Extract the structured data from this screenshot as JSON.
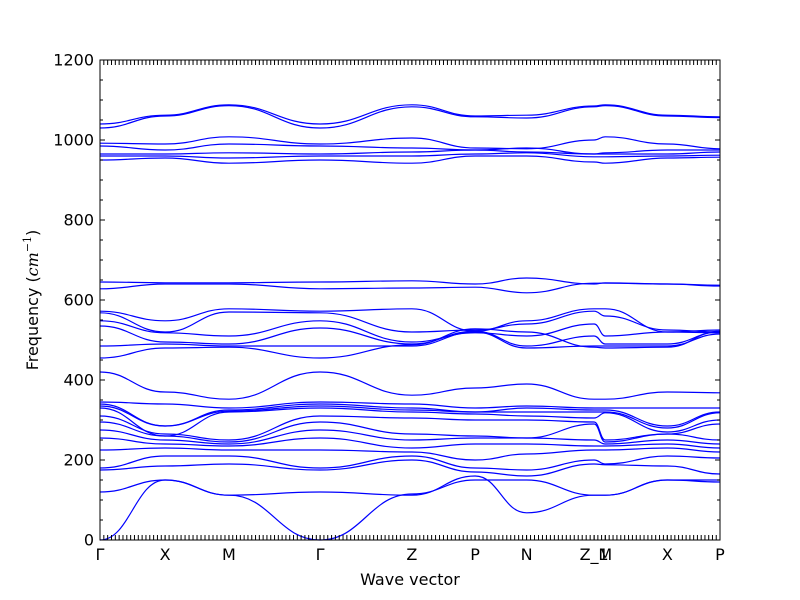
{
  "chart_data": {
    "type": "line",
    "title": "",
    "xlabel": "Wave vector",
    "ylabel": "Frequency (cm⁻¹)",
    "ylabel_main": "Frequency (",
    "ylabel_unit": "cm",
    "ylabel_exp": "−1",
    "ylabel_close": ")",
    "ylim": [
      0,
      1200
    ],
    "yticks": [
      0,
      200,
      400,
      600,
      800,
      1000,
      1200
    ],
    "xlim": [
      0,
      10
    ],
    "high_symmetry_points": [
      {
        "label": "Γ",
        "x": 0
      },
      {
        "label": "X",
        "x": 1.05
      },
      {
        "label": "M",
        "x": 2.08
      },
      {
        "label": "Γ",
        "x": 3.55
      },
      {
        "label": "Z",
        "x": 5.03
      },
      {
        "label": "P",
        "x": 6.05
      },
      {
        "label": "N",
        "x": 6.88
      },
      {
        "label": "Z_1",
        "x": 7.97
      },
      {
        "label": "M",
        "x": 8.15
      },
      {
        "label": "X",
        "x": 9.15
      },
      {
        "label": "P",
        "x": 10
      }
    ],
    "line_color": "#0000ff",
    "grid": false,
    "series": [
      {
        "values": [
          1040,
          1062,
          1088,
          1040,
          1088,
          1060,
          1062,
          1085,
          1088,
          1062,
          1058
        ]
      },
      {
        "values": [
          1030,
          1060,
          1086,
          1030,
          1083,
          1058,
          1055,
          1083,
          1086,
          1060,
          1056
        ]
      },
      {
        "values": [
          992,
          990,
          1008,
          990,
          1005,
          980,
          978,
          1000,
          1008,
          990,
          978
        ]
      },
      {
        "values": [
          985,
          975,
          990,
          985,
          980,
          975,
          980,
          965,
          968,
          975,
          975
        ]
      },
      {
        "values": [
          965,
          965,
          968,
          965,
          970,
          975,
          970,
          965,
          965,
          965,
          970
        ]
      },
      {
        "values": [
          960,
          960,
          955,
          960,
          960,
          965,
          968,
          958,
          958,
          960,
          962
        ]
      },
      {
        "values": [
          950,
          955,
          942,
          950,
          942,
          960,
          960,
          945,
          942,
          955,
          957
        ]
      },
      {
        "values": [
          645,
          643,
          643,
          645,
          648,
          640,
          655,
          640,
          643,
          640,
          637
        ]
      },
      {
        "values": [
          628,
          640,
          640,
          628,
          630,
          632,
          618,
          642,
          642,
          640,
          635
        ]
      },
      {
        "values": [
          572,
          548,
          578,
          572,
          578,
          522,
          548,
          578,
          578,
          520,
          525
        ]
      },
      {
        "values": [
          568,
          520,
          570,
          568,
          520,
          525,
          540,
          572,
          560,
          525,
          520
        ]
      },
      {
        "values": [
          548,
          518,
          510,
          548,
          495,
          518,
          510,
          540,
          510,
          520,
          518
        ]
      },
      {
        "values": [
          535,
          495,
          490,
          530,
          490,
          522,
          485,
          510,
          490,
          490,
          520
        ]
      },
      {
        "values": [
          485,
          490,
          485,
          485,
          485,
          520,
          480,
          485,
          485,
          485,
          515
        ]
      },
      {
        "values": [
          455,
          480,
          482,
          455,
          488,
          528,
          520,
          482,
          480,
          482,
          522
        ]
      },
      {
        "values": [
          420,
          370,
          352,
          420,
          362,
          380,
          390,
          352,
          352,
          370,
          368
        ]
      },
      {
        "values": [
          345,
          340,
          330,
          345,
          340,
          330,
          335,
          330,
          330,
          330,
          330
        ]
      },
      {
        "values": [
          340,
          285,
          325,
          340,
          330,
          320,
          330,
          325,
          325,
          285,
          320
        ]
      },
      {
        "values": [
          335,
          285,
          322,
          335,
          325,
          320,
          320,
          320,
          320,
          280,
          318
        ]
      },
      {
        "values": [
          330,
          260,
          320,
          330,
          320,
          315,
          310,
          305,
          318,
          270,
          300
        ]
      },
      {
        "values": [
          310,
          265,
          250,
          310,
          305,
          300,
          300,
          295,
          250,
          265,
          290
        ]
      },
      {
        "values": [
          295,
          260,
          245,
          295,
          265,
          260,
          255,
          290,
          245,
          265,
          250
        ]
      },
      {
        "values": [
          275,
          250,
          240,
          275,
          250,
          255,
          255,
          250,
          240,
          250,
          240
        ]
      },
      {
        "values": [
          255,
          240,
          235,
          255,
          230,
          240,
          240,
          235,
          235,
          240,
          230
        ]
      },
      {
        "values": [
          225,
          230,
          225,
          225,
          220,
          200,
          215,
          225,
          225,
          230,
          220
        ]
      },
      {
        "values": [
          180,
          210,
          210,
          180,
          210,
          180,
          175,
          200,
          190,
          210,
          205
        ]
      },
      {
        "values": [
          175,
          185,
          190,
          175,
          200,
          170,
          160,
          190,
          188,
          185,
          165
        ]
      },
      {
        "values": [
          120,
          150,
          112,
          120,
          112,
          160,
          68,
          112,
          112,
          150,
          150
        ]
      },
      {
        "values": [
          0,
          150,
          112,
          0,
          115,
          150,
          150,
          112,
          112,
          150,
          145
        ]
      }
    ]
  }
}
